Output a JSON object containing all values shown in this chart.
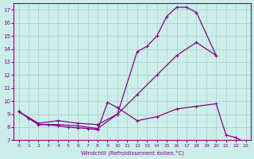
{
  "title": "",
  "xlabel": "Windchill (Refroidissement éolien,°C)",
  "ylabel": "",
  "bg_color": "#cceee8",
  "grid_color": "#aacccc",
  "line_color": "#880088",
  "xlim": [
    -0.5,
    23.5
  ],
  "ylim": [
    7,
    17.5
  ],
  "xticks": [
    0,
    1,
    2,
    3,
    4,
    5,
    6,
    7,
    8,
    9,
    10,
    11,
    12,
    13,
    14,
    15,
    16,
    17,
    18,
    19,
    20,
    21,
    22,
    23
  ],
  "yticks": [
    7,
    8,
    9,
    10,
    11,
    12,
    13,
    14,
    15,
    16,
    17
  ],
  "line1_x": [
    0,
    1,
    2,
    4,
    6,
    8,
    10,
    12,
    13,
    14,
    15,
    16,
    17,
    18,
    20
  ],
  "line1_y": [
    9.2,
    8.7,
    8.2,
    8.2,
    8.1,
    7.9,
    9.0,
    13.8,
    14.2,
    15.0,
    16.5,
    17.2,
    17.2,
    16.8,
    13.5
  ],
  "line2_x": [
    0,
    2,
    4,
    6,
    8,
    10,
    12,
    14,
    16,
    18,
    20
  ],
  "line2_y": [
    9.2,
    8.3,
    8.5,
    8.3,
    8.2,
    9.0,
    10.5,
    12.0,
    13.5,
    14.5,
    13.5
  ],
  "line3_x": [
    0,
    1,
    2,
    3,
    4,
    5,
    6,
    7,
    8,
    9,
    10,
    12,
    14,
    16,
    18,
    20,
    21,
    22,
    23
  ],
  "line3_y": [
    9.2,
    8.7,
    8.2,
    8.2,
    8.1,
    8.0,
    7.95,
    7.9,
    7.8,
    9.9,
    9.5,
    8.5,
    8.8,
    9.4,
    9.6,
    9.8,
    7.4,
    7.2,
    6.8
  ],
  "marker": "+"
}
